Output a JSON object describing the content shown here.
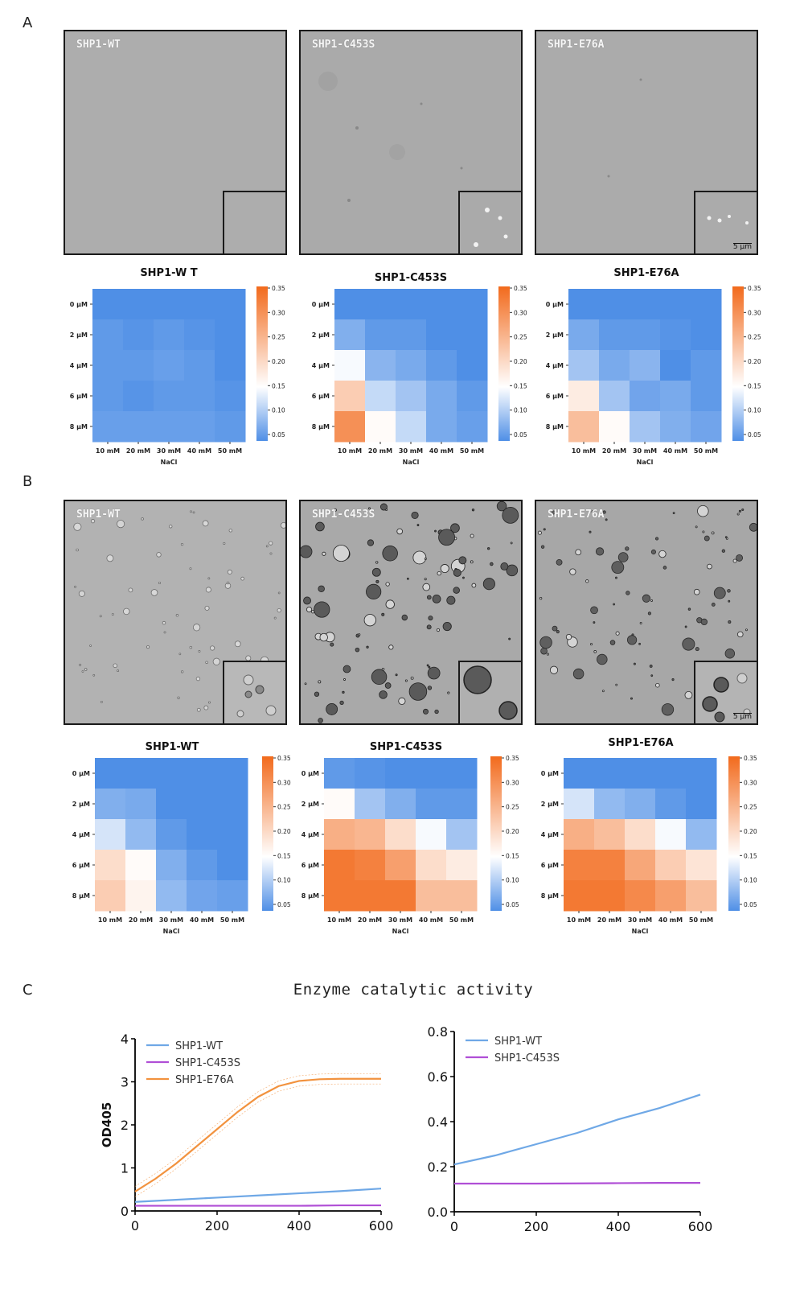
{
  "panels": {
    "a": "A",
    "b": "B",
    "c": "C"
  },
  "panel_a": {
    "micrographs": [
      "SHP1-WT",
      "SHP1-C453S",
      "SHP1-E76A"
    ],
    "heatmap_titles": [
      "SHP1-W T",
      "SHP1-C453S",
      "SHP1-E76A"
    ],
    "scale_bar": "5 μm"
  },
  "panel_b": {
    "micrographs": [
      "SHP1-WT",
      "SHP1-C453S",
      "SHP1-E76A"
    ],
    "heatmap_titles": [
      "SHP1-WT",
      "SHP1-C453S",
      "SHP1-E76A"
    ],
    "scale_bar": "5 μm"
  },
  "panel_c": {
    "title": "Enzyme catalytic activity"
  },
  "colors": {
    "heat_low": "#4f8fe6",
    "heat_mid": "#ffffff",
    "heat_high": "#f26a1c",
    "wt": "#6fa8e6",
    "c453s": "#b04fd6",
    "e76a": "#f2923e"
  },
  "chart_data": [
    {
      "type": "heatmap",
      "title": "SHP1-W T",
      "rows": [
        "0 μM",
        "2 μM",
        "4 μM",
        "6 μM",
        "8 μM"
      ],
      "cols": [
        "10 mM",
        "20 mM",
        "30 mM",
        "40 mM",
        "50 mM"
      ],
      "xlabel": "NaCl",
      "values": [
        [
          0.05,
          0.05,
          0.05,
          0.05,
          0.05
        ],
        [
          0.06,
          0.055,
          0.06,
          0.055,
          0.05
        ],
        [
          0.06,
          0.06,
          0.065,
          0.06,
          0.05
        ],
        [
          0.06,
          0.055,
          0.06,
          0.06,
          0.055
        ],
        [
          0.065,
          0.065,
          0.065,
          0.065,
          0.06
        ]
      ],
      "colorbar": {
        "min": 0.05,
        "max": 0.35,
        "ticks": [
          "0.35",
          "0.30",
          "0.25",
          "0.20",
          "0.15",
          "0.10",
          "0.05"
        ]
      }
    },
    {
      "type": "heatmap",
      "title": "SHP1-C453S",
      "rows": [
        "0 μM",
        "2 μM",
        "4 μM",
        "6 μM",
        "8 μM"
      ],
      "cols": [
        "10 mM",
        "20 mM",
        "30 mM",
        "40 mM",
        "50 mM"
      ],
      "xlabel": "NaCl",
      "values": [
        [
          0.05,
          0.05,
          0.05,
          0.05,
          0.05
        ],
        [
          0.08,
          0.06,
          0.06,
          0.05,
          0.05
        ],
        [
          0.15,
          0.085,
          0.075,
          0.06,
          0.05
        ],
        [
          0.22,
          0.12,
          0.1,
          0.075,
          0.06
        ],
        [
          0.3,
          0.16,
          0.12,
          0.075,
          0.065
        ]
      ],
      "colorbar": {
        "min": 0.05,
        "max": 0.35,
        "ticks": [
          "0.35",
          "0.30",
          "0.25",
          "0.20",
          "0.15",
          "0.10",
          "0.05"
        ]
      }
    },
    {
      "type": "heatmap",
      "title": "SHP1-E76A",
      "rows": [
        "0 μM",
        "2 μM",
        "4 μM",
        "6 μM",
        "8 μM"
      ],
      "cols": [
        "10 mM",
        "20 mM",
        "30 mM",
        "40 mM",
        "50 mM"
      ],
      "xlabel": "NaCl",
      "values": [
        [
          0.05,
          0.05,
          0.05,
          0.05,
          0.05
        ],
        [
          0.075,
          0.06,
          0.06,
          0.055,
          0.05
        ],
        [
          0.1,
          0.075,
          0.085,
          0.05,
          0.06
        ],
        [
          0.18,
          0.1,
          0.07,
          0.075,
          0.06
        ],
        [
          0.24,
          0.16,
          0.1,
          0.08,
          0.07
        ]
      ],
      "colorbar": {
        "min": 0.05,
        "max": 0.35,
        "ticks": [
          "0.35",
          "0.30",
          "0.25",
          "0.20",
          "0.15",
          "0.10",
          "0.05"
        ]
      }
    },
    {
      "type": "heatmap",
      "title": "SHP1-WT",
      "rows": [
        "0 μM",
        "2 μM",
        "4 μM",
        "6 μM",
        "8 μM"
      ],
      "cols": [
        "10 mM",
        "20 mM",
        "30 mM",
        "40 mM",
        "50 mM"
      ],
      "xlabel": "NaCl",
      "values": [
        [
          0.05,
          0.05,
          0.05,
          0.05,
          0.05
        ],
        [
          0.08,
          0.075,
          0.05,
          0.05,
          0.05
        ],
        [
          0.13,
          0.09,
          0.06,
          0.05,
          0.05
        ],
        [
          0.2,
          0.16,
          0.08,
          0.06,
          0.05
        ],
        [
          0.22,
          0.17,
          0.09,
          0.07,
          0.065
        ]
      ],
      "colorbar": {
        "min": 0.05,
        "max": 0.35,
        "ticks": [
          "0.35",
          "0.30",
          "0.25",
          "0.20",
          "0.15",
          "0.10",
          "0.05"
        ]
      }
    },
    {
      "type": "heatmap",
      "title": "SHP1-C453S",
      "rows": [
        "0 μM",
        "2 μM",
        "4 μM",
        "6 μM",
        "8 μM"
      ],
      "cols": [
        "10 mM",
        "20 mM",
        "30 mM",
        "40 mM",
        "50 mM"
      ],
      "xlabel": "NaCl",
      "values": [
        [
          0.06,
          0.055,
          0.05,
          0.05,
          0.05
        ],
        [
          0.16,
          0.1,
          0.08,
          0.06,
          0.06
        ],
        [
          0.26,
          0.25,
          0.2,
          0.15,
          0.1
        ],
        [
          0.33,
          0.32,
          0.28,
          0.2,
          0.18
        ],
        [
          0.33,
          0.33,
          0.33,
          0.24,
          0.24
        ]
      ],
      "colorbar": {
        "min": 0.05,
        "max": 0.35,
        "ticks": [
          "0.35",
          "0.30",
          "0.25",
          "0.20",
          "0.15",
          "0.10",
          "0.05"
        ]
      }
    },
    {
      "type": "heatmap",
      "title": "SHP1-E76A",
      "rows": [
        "0 μM",
        "2 μM",
        "4 μM",
        "6 μM",
        "8 μM"
      ],
      "cols": [
        "10 mM",
        "20 mM",
        "30 mM",
        "40 mM",
        "50 mM"
      ],
      "xlabel": "NaCl",
      "values": [
        [
          0.05,
          0.05,
          0.05,
          0.05,
          0.05
        ],
        [
          0.13,
          0.09,
          0.08,
          0.06,
          0.05
        ],
        [
          0.26,
          0.24,
          0.2,
          0.15,
          0.09
        ],
        [
          0.32,
          0.32,
          0.27,
          0.22,
          0.19
        ],
        [
          0.33,
          0.33,
          0.31,
          0.28,
          0.24
        ]
      ],
      "colorbar": {
        "min": 0.05,
        "max": 0.35,
        "ticks": [
          "0.35",
          "0.30",
          "0.25",
          "0.20",
          "0.15",
          "0.10",
          "0.05"
        ]
      }
    },
    {
      "type": "line",
      "title": "",
      "ylabel": "OD405",
      "xlim": [
        0,
        600
      ],
      "ylim": [
        0,
        4
      ],
      "xticks": [
        0,
        200,
        400,
        600
      ],
      "yticks": [
        0,
        1,
        2,
        3,
        4
      ],
      "series": [
        {
          "name": "SHP1-WT",
          "color": "#6fa8e6",
          "x": [
            0,
            100,
            200,
            300,
            400,
            500,
            600
          ],
          "y": [
            0.21,
            0.26,
            0.31,
            0.36,
            0.41,
            0.46,
            0.52
          ]
        },
        {
          "name": "SHP1-C453S",
          "color": "#b04fd6",
          "x": [
            0,
            100,
            200,
            300,
            400,
            500,
            600
          ],
          "y": [
            0.12,
            0.12,
            0.12,
            0.12,
            0.12,
            0.13,
            0.13
          ]
        },
        {
          "name": "SHP1-E76A",
          "color": "#f2923e",
          "x": [
            0,
            50,
            100,
            150,
            200,
            250,
            300,
            350,
            400,
            450,
            500,
            550,
            600
          ],
          "y": [
            0.45,
            0.75,
            1.1,
            1.5,
            1.9,
            2.3,
            2.65,
            2.9,
            3.02,
            3.06,
            3.07,
            3.07,
            3.07
          ]
        }
      ]
    },
    {
      "type": "line",
      "title": "",
      "xlim": [
        0,
        600
      ],
      "ylim": [
        0,
        0.8
      ],
      "xticks": [
        0,
        200,
        400,
        600
      ],
      "yticks": [
        0.0,
        0.2,
        0.4,
        0.6,
        0.8
      ],
      "series": [
        {
          "name": "SHP1-WT",
          "color": "#6fa8e6",
          "x": [
            0,
            100,
            200,
            300,
            400,
            500,
            600
          ],
          "y": [
            0.21,
            0.25,
            0.3,
            0.35,
            0.41,
            0.46,
            0.52
          ]
        },
        {
          "name": "SHP1-C453S",
          "color": "#b04fd6",
          "x": [
            0,
            100,
            200,
            300,
            400,
            500,
            600
          ],
          "y": [
            0.125,
            0.125,
            0.125,
            0.126,
            0.127,
            0.128,
            0.128
          ]
        }
      ]
    }
  ]
}
